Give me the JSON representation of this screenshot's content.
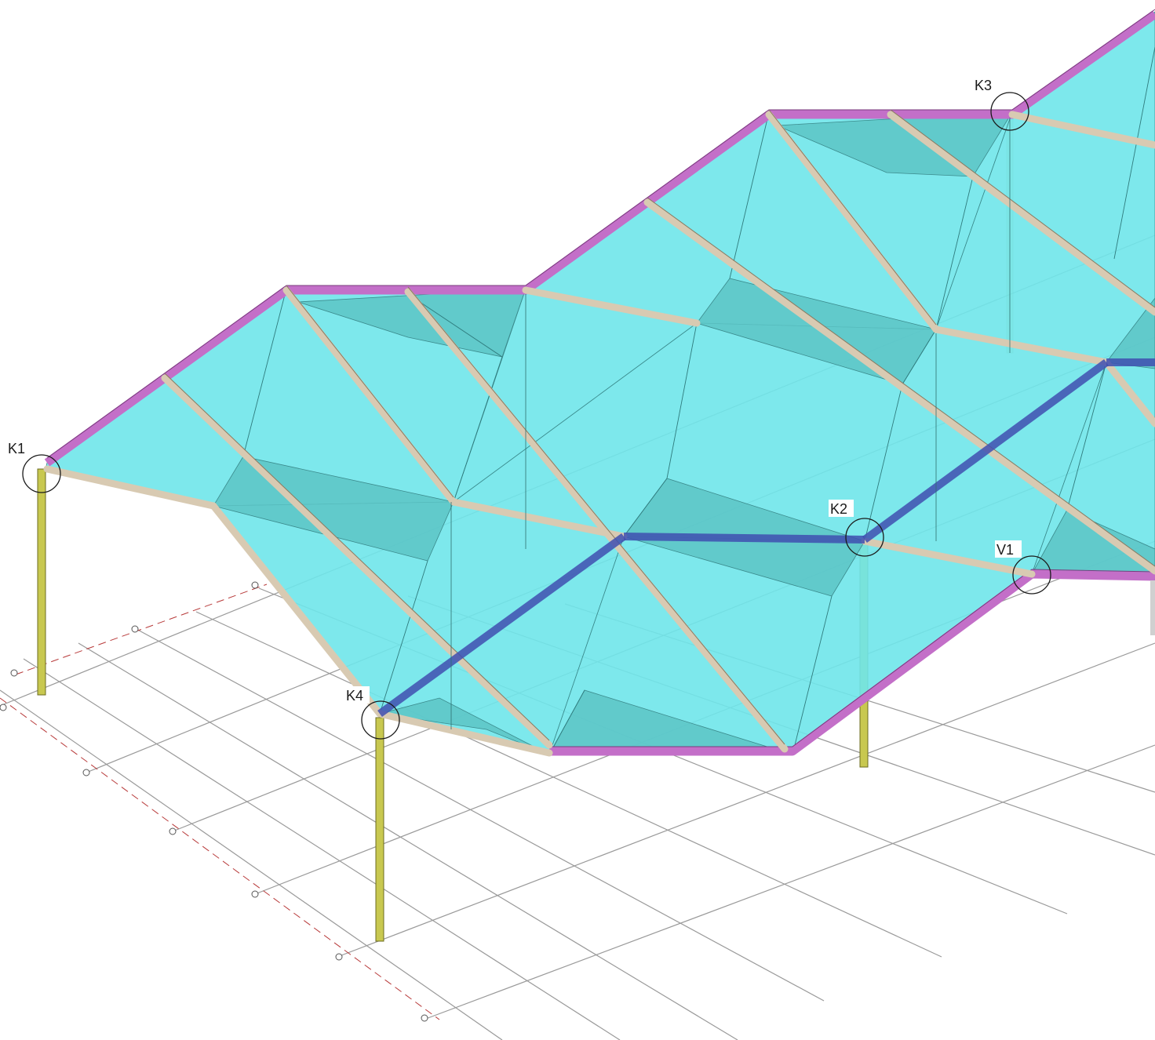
{
  "structure": {
    "nodes": [
      {
        "id": "k1",
        "label": "K1"
      },
      {
        "id": "k2",
        "label": "K2"
      },
      {
        "id": "k3",
        "label": "K3"
      },
      {
        "id": "k4",
        "label": "K4"
      },
      {
        "id": "v1",
        "label": "V1"
      }
    ]
  },
  "colors": {
    "background": "#ffffff",
    "roof_panel": "#6fe6ea",
    "roof_panel_shade": "#5fcdd0",
    "edge_beam": "#c36fc8",
    "rafter": "#d8cab2",
    "tie_beam": "#3f4fb0",
    "column": "#c8c850",
    "grid_line": "#9a9a9a",
    "axis_line": "#b83a3a",
    "node_circle": "#1a1a1a"
  }
}
